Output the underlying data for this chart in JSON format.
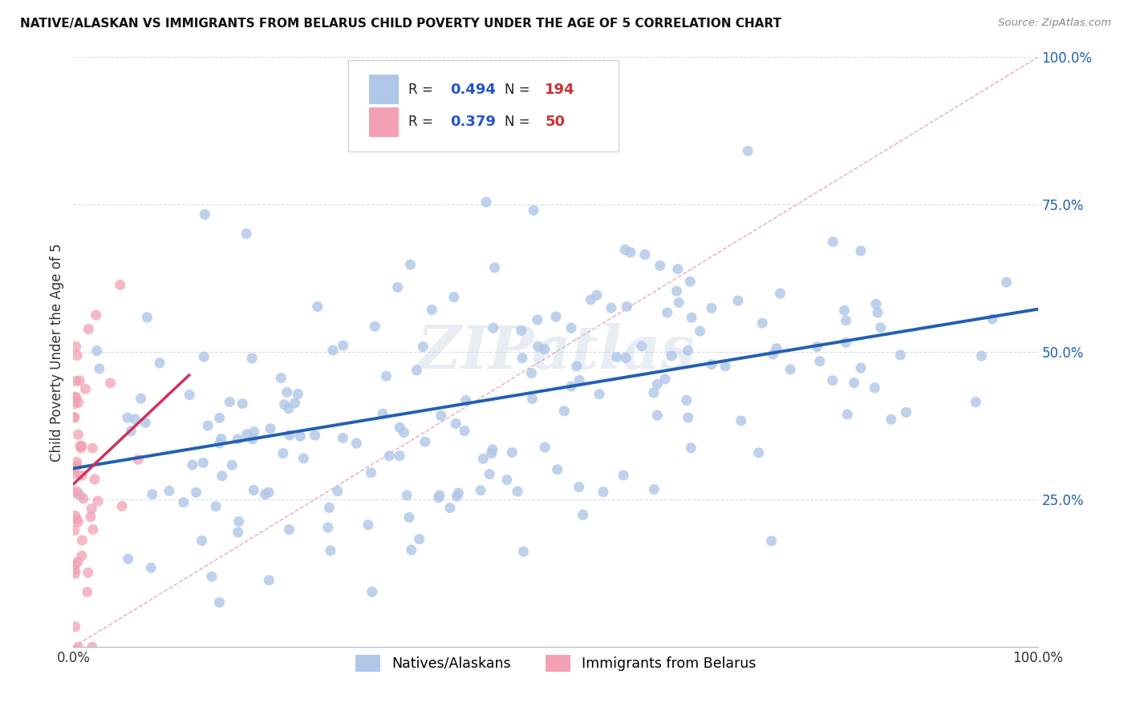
{
  "title": "NATIVE/ALASKAN VS IMMIGRANTS FROM BELARUS CHILD POVERTY UNDER THE AGE OF 5 CORRELATION CHART",
  "source": "Source: ZipAtlas.com",
  "ylabel": "Child Poverty Under the Age of 5",
  "r_native": 0.494,
  "n_native": 194,
  "r_belarus": 0.379,
  "n_belarus": 50,
  "xlim": [
    0.0,
    1.0
  ],
  "ylim": [
    0.0,
    1.0
  ],
  "native_color": "#aec6e8",
  "belarus_color": "#f4a0b4",
  "native_line_color": "#2060b0",
  "belarus_line_color": "#d03060",
  "diagonal_color": "#e8a0b0",
  "legend_r_color": "#2255cc",
  "legend_n_color": "#cc3030",
  "watermark": "ZIPatlas",
  "background_color": "#ffffff",
  "grid_color": "#d8dce8",
  "ytick_color": "#2060b0",
  "label_color": "#333333"
}
